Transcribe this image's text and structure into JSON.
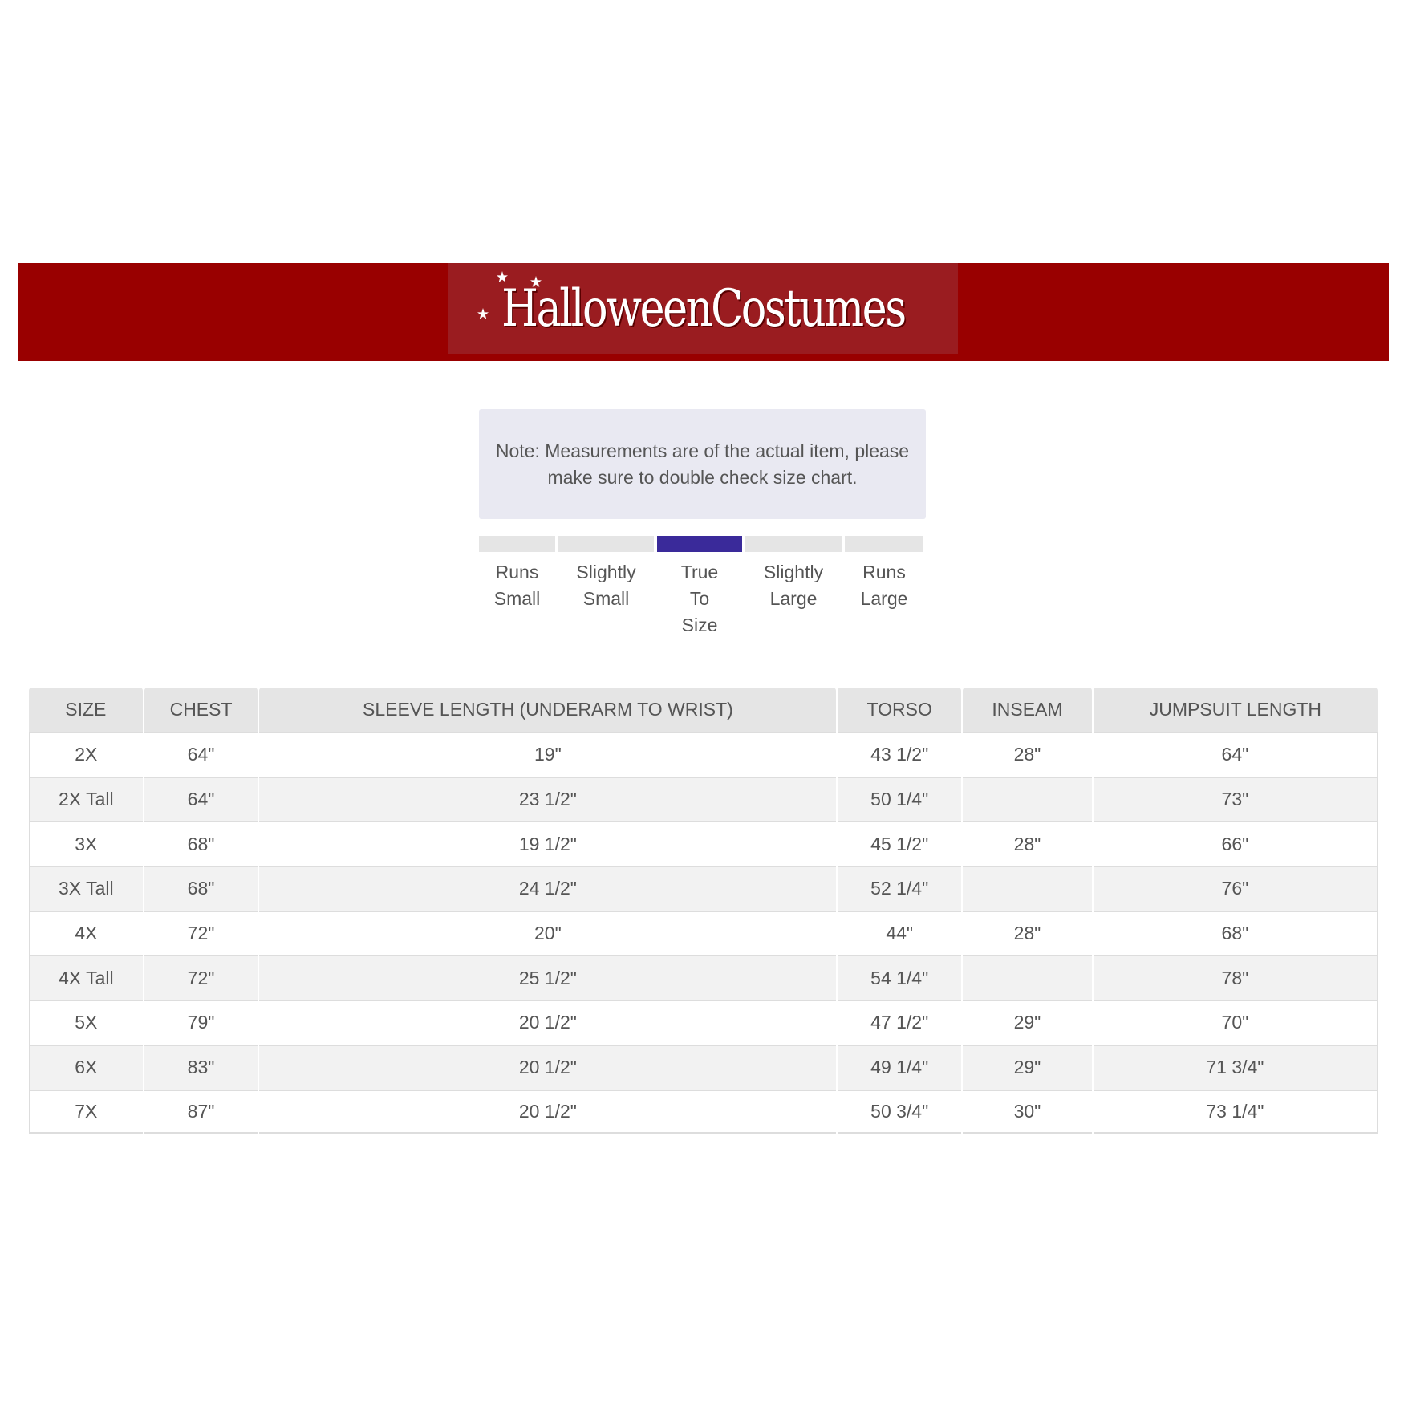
{
  "brand": {
    "logo_text": "HalloweenCostumes",
    "banner_color": "#990000"
  },
  "note": "Note: Measurements are of the actual item, please make sure to double check size chart.",
  "fit_meter": {
    "options": [
      [
        "Runs",
        "Small"
      ],
      [
        "Slightly",
        "Small"
      ],
      [
        "True",
        "To",
        "Size"
      ],
      [
        "Slightly",
        "Large"
      ],
      [
        "Runs",
        "Large"
      ]
    ],
    "selected_index": 2,
    "selected_color": "#3a2a9a"
  },
  "table": {
    "headers": [
      "SIZE",
      "CHEST",
      "SLEEVE LENGTH (UNDERARM TO WRIST)",
      "TORSO",
      "INSEAM",
      "JUMPSUIT LENGTH"
    ],
    "rows": [
      [
        "2X",
        "64\"",
        "19\"",
        "43 1/2\"",
        "28\"",
        "64\""
      ],
      [
        "2X Tall",
        "64\"",
        "23 1/2\"",
        "50 1/4\"",
        "",
        "73\""
      ],
      [
        "3X",
        "68\"",
        "19 1/2\"",
        "45 1/2\"",
        "28\"",
        "66\""
      ],
      [
        "3X Tall",
        "68\"",
        "24 1/2\"",
        "52 1/4\"",
        "",
        "76\""
      ],
      [
        "4X",
        "72\"",
        "20\"",
        "44\"",
        "28\"",
        "68\""
      ],
      [
        "4X Tall",
        "72\"",
        "25 1/2\"",
        "54 1/4\"",
        "",
        "78\""
      ],
      [
        "5X",
        "79\"",
        "20 1/2\"",
        "47 1/2\"",
        "29\"",
        "70\""
      ],
      [
        "6X",
        "83\"",
        "20 1/2\"",
        "49 1/4\"",
        "29\"",
        "71 3/4\""
      ],
      [
        "7X",
        "87\"",
        "20 1/2\"",
        "50 3/4\"",
        "30\"",
        "73 1/4\""
      ]
    ]
  }
}
